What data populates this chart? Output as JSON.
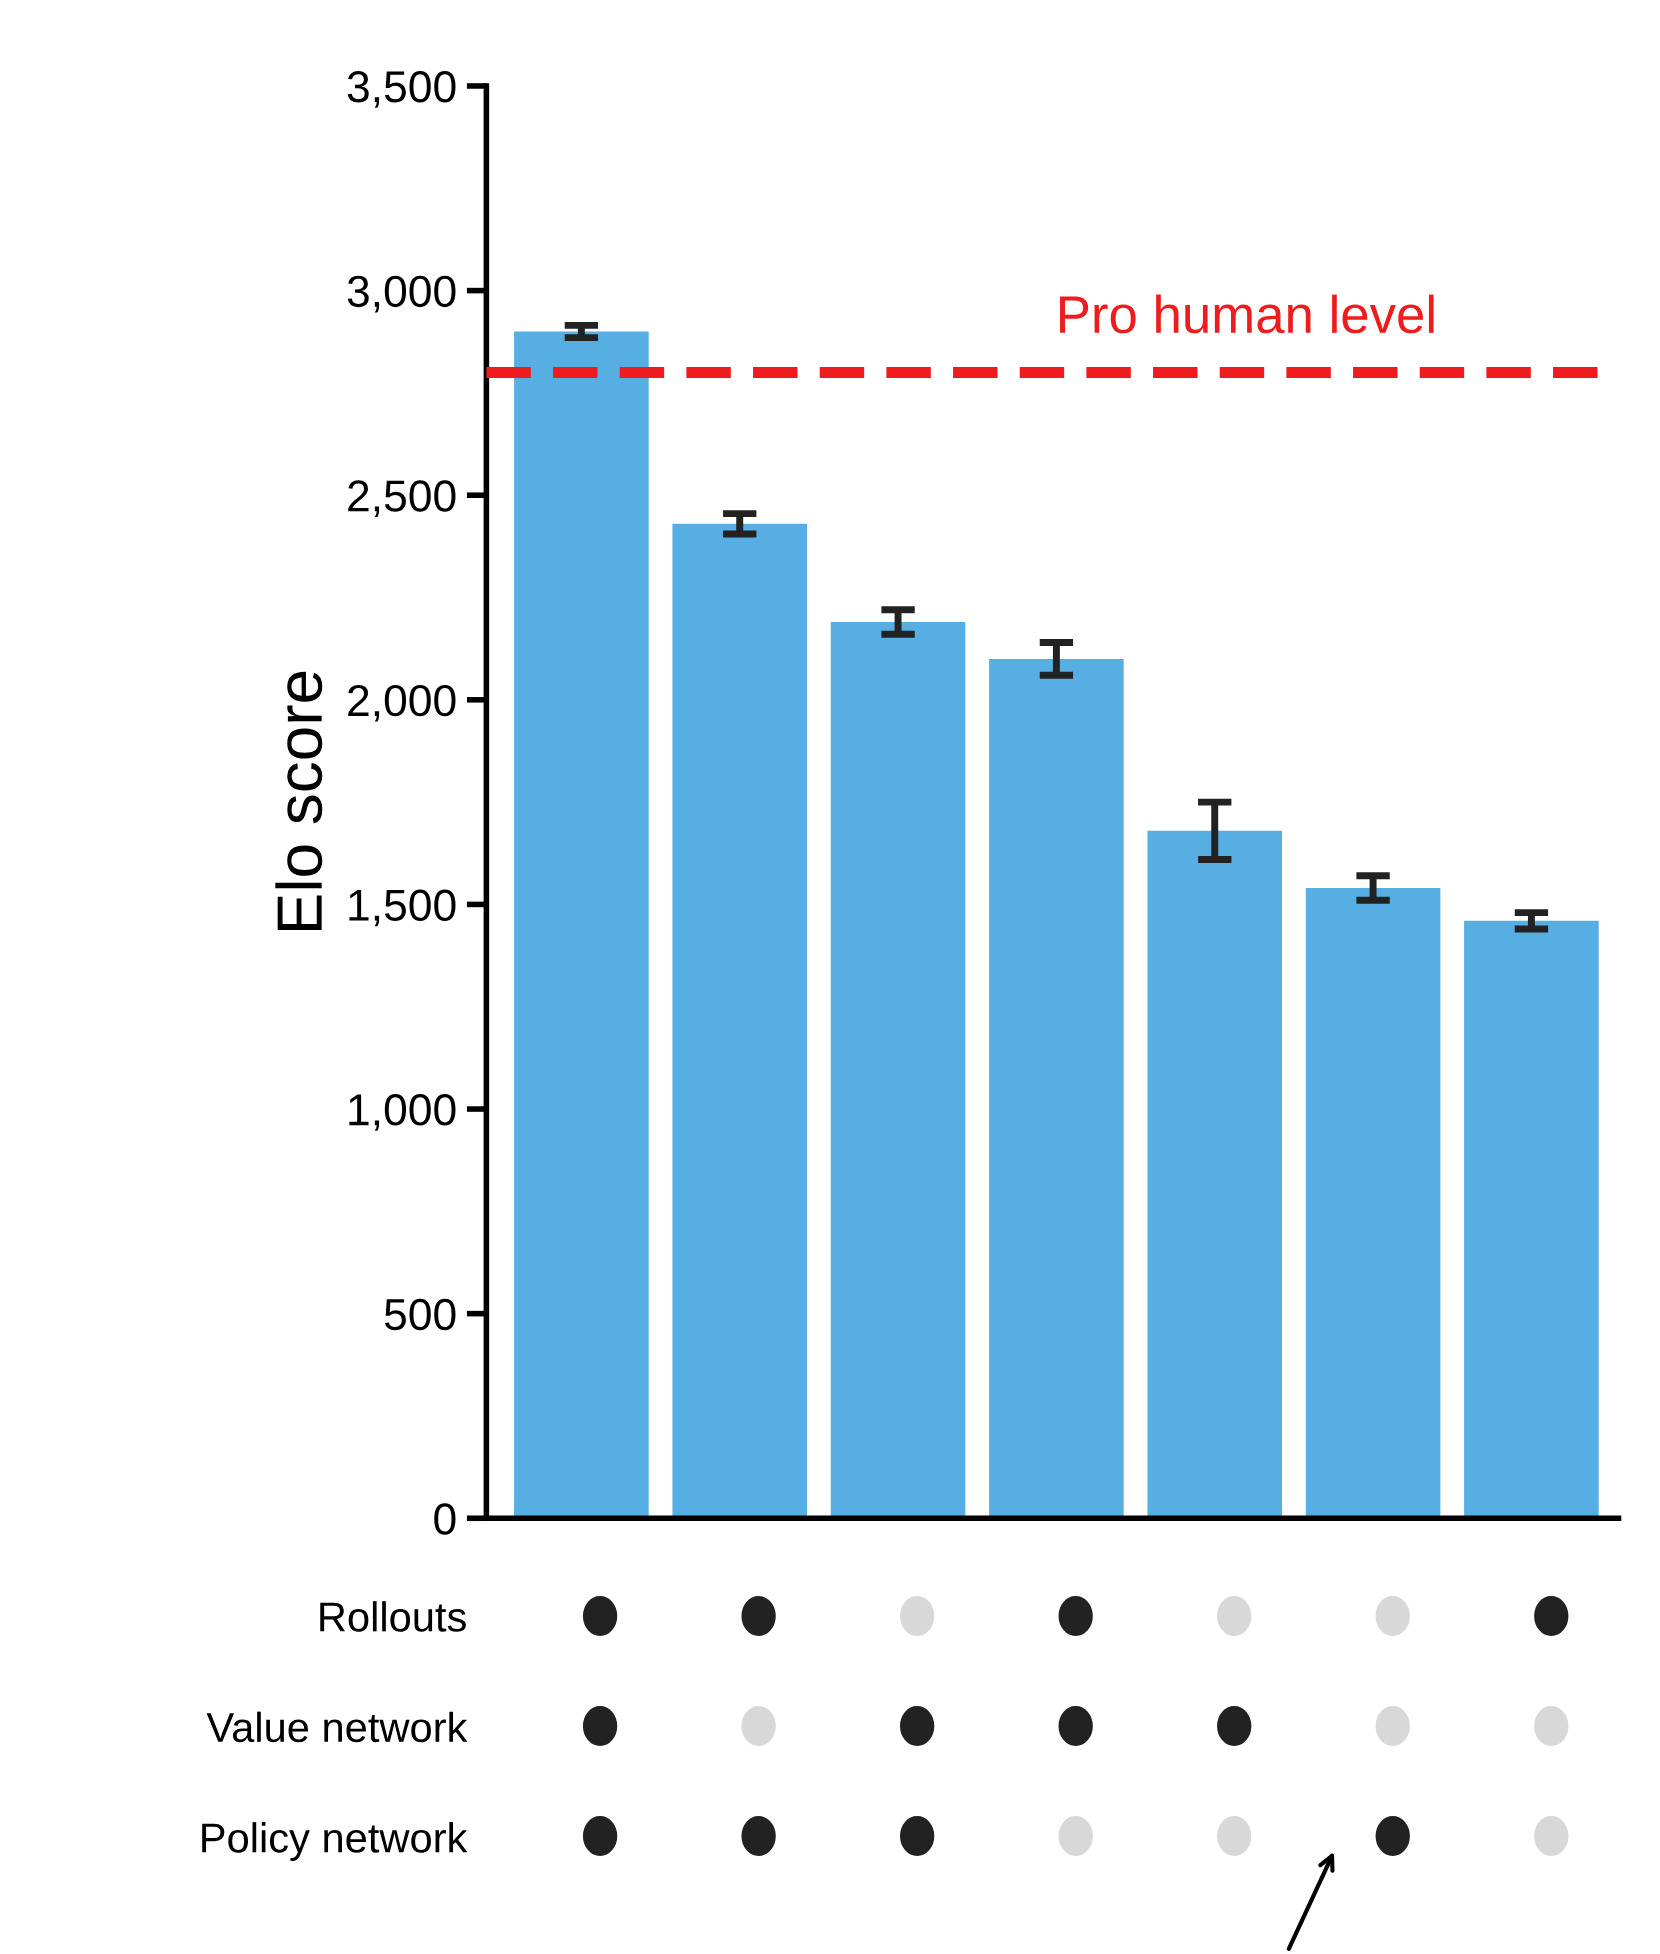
{
  "chart_data": {
    "type": "bar",
    "ylabel": "Elo score",
    "categories": [
      null,
      null,
      null,
      null,
      null,
      null,
      null
    ],
    "values": [
      2900,
      2430,
      2190,
      2100,
      1680,
      1540,
      1460
    ],
    "errors": [
      15,
      25,
      30,
      40,
      70,
      30,
      20
    ],
    "color": "#56aee2",
    "ylim": [
      0,
      3500
    ],
    "yticks": [
      {
        "value": 0,
        "label": "0"
      },
      {
        "value": 500,
        "label": "500"
      },
      {
        "value": 1000,
        "label": "1,000"
      },
      {
        "value": 1500,
        "label": "1,500"
      },
      {
        "value": 2000,
        "label": "2,000"
      },
      {
        "value": 2500,
        "label": "2,500"
      },
      {
        "value": 3000,
        "label": "3,000"
      },
      {
        "value": 3500,
        "label": "3,500"
      }
    ],
    "grid": false,
    "ref_lines": [
      {
        "axis": "y",
        "value": 2800,
        "label": "Pro human level",
        "color": "#ee1c1c",
        "line_style": "dashed"
      }
    ],
    "annotations": [
      "Rollouts",
      "Value network",
      "Policy network"
    ]
  }
}
